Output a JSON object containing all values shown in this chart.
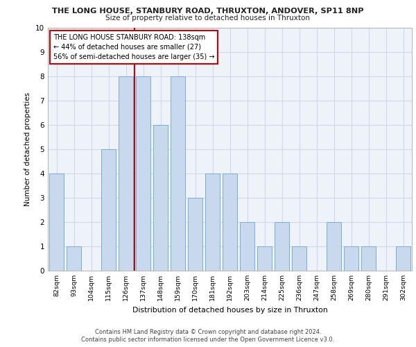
{
  "title_line1": "THE LONG HOUSE, STANBURY ROAD, THRUXTON, ANDOVER, SP11 8NP",
  "title_line2": "Size of property relative to detached houses in Thruxton",
  "xlabel": "Distribution of detached houses by size in Thruxton",
  "ylabel": "Number of detached properties",
  "footer_line1": "Contains HM Land Registry data © Crown copyright and database right 2024.",
  "footer_line2": "Contains public sector information licensed under the Open Government Licence v3.0.",
  "categories": [
    "82sqm",
    "93sqm",
    "104sqm",
    "115sqm",
    "126sqm",
    "137sqm",
    "148sqm",
    "159sqm",
    "170sqm",
    "181sqm",
    "192sqm",
    "203sqm",
    "214sqm",
    "225sqm",
    "236sqm",
    "247sqm",
    "258sqm",
    "269sqm",
    "280sqm",
    "291sqm",
    "302sqm"
  ],
  "values": [
    4,
    1,
    0,
    5,
    8,
    8,
    6,
    8,
    3,
    4,
    4,
    2,
    1,
    2,
    1,
    0,
    2,
    1,
    1,
    0,
    1
  ],
  "bar_color": "#c8d9ed",
  "bar_edge_color": "#7aadd4",
  "grid_color": "#d0d8e8",
  "background_color": "#eef2f9",
  "property_line_index": 5,
  "annotation_text_line1": "THE LONG HOUSE STANBURY ROAD: 138sqm",
  "annotation_text_line2": "← 44% of detached houses are smaller (27)",
  "annotation_text_line3": "56% of semi-detached houses are larger (35) →",
  "annotation_box_color": "#ffffff",
  "annotation_border_color": "#cc0000",
  "vline_color": "#cc0000",
  "ylim": [
    0,
    10
  ],
  "yticks": [
    0,
    1,
    2,
    3,
    4,
    5,
    6,
    7,
    8,
    9,
    10
  ]
}
